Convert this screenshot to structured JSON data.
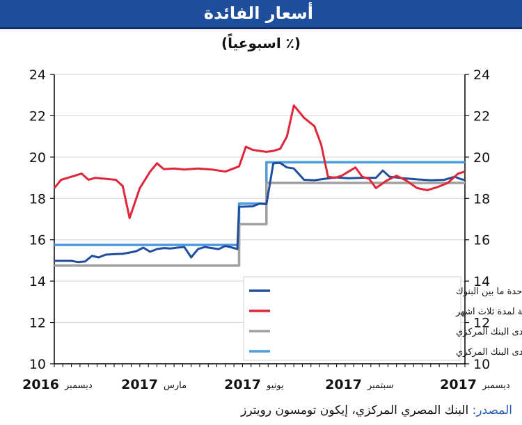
{
  "header": {
    "title": "أسعار الفائدة",
    "subtitle": "(٪ اسبوعياً)"
  },
  "footer": {
    "source_label": "المصدر:",
    "source_text": "البنك المصري المركزي، إيكون تومسون رويترز"
  },
  "chart_data": {
    "type": "line",
    "ylim": [
      10,
      24
    ],
    "yticks": [
      10,
      12,
      14,
      16,
      18,
      20,
      22,
      24
    ],
    "xlim": [
      0,
      12
    ],
    "x_labels": [
      {
        "pos": 0,
        "text": "ديسمبر",
        "style": "small"
      },
      {
        "pos": 0,
        "text": "2016",
        "style": "year"
      },
      {
        "pos": 3,
        "text": "مارس",
        "style": "small"
      },
      {
        "pos": 3,
        "text": "2017",
        "style": "year"
      },
      {
        "pos": 6,
        "text": "يونيو",
        "style": "small"
      },
      {
        "pos": 6,
        "text": "2017",
        "style": "year"
      },
      {
        "pos": 9,
        "text": "سبتمبر",
        "style": "small"
      },
      {
        "pos": 9,
        "text": "2017",
        "style": "year"
      },
      {
        "pos": 12,
        "text": "ديسمبر",
        "style": "small"
      },
      {
        "pos": 12,
        "text": "2017",
        "style": "year"
      }
    ],
    "grid": "horizontal",
    "legend_position": "bottom-right",
    "series": [
      {
        "name": "الاقراض لليلة واحدة لدى البنك المركزي",
        "color": "#4b9be0",
        "width": 3.5,
        "points": [
          [
            0,
            15.75
          ],
          [
            5.4,
            15.75
          ],
          [
            5.4,
            17.75
          ],
          [
            6.2,
            17.75
          ],
          [
            6.2,
            19.75
          ],
          [
            12,
            19.75
          ]
        ]
      },
      {
        "name": "الإيداع لليلة واحدة لدى البنك المركزي",
        "color": "#a0a0a0",
        "width": 3.5,
        "points": [
          [
            0,
            14.75
          ],
          [
            5.4,
            14.75
          ],
          [
            5.4,
            16.75
          ],
          [
            6.2,
            16.75
          ],
          [
            6.2,
            18.75
          ],
          [
            12,
            18.75
          ]
        ]
      },
      {
        "name": "الليلة الواحدة ما بين البنوك",
        "color": "#1f4e9c",
        "width": 3,
        "points": [
          [
            0,
            14.98
          ],
          [
            0.5,
            14.98
          ],
          [
            0.7,
            14.92
          ],
          [
            0.9,
            14.95
          ],
          [
            1.1,
            15.22
          ],
          [
            1.3,
            15.15
          ],
          [
            1.5,
            15.28
          ],
          [
            1.7,
            15.3
          ],
          [
            2.0,
            15.32
          ],
          [
            2.2,
            15.38
          ],
          [
            2.4,
            15.45
          ],
          [
            2.6,
            15.62
          ],
          [
            2.8,
            15.42
          ],
          [
            3.0,
            15.55
          ],
          [
            3.2,
            15.6
          ],
          [
            3.4,
            15.58
          ],
          [
            3.6,
            15.62
          ],
          [
            3.8,
            15.65
          ],
          [
            4.0,
            15.15
          ],
          [
            4.2,
            15.55
          ],
          [
            4.4,
            15.65
          ],
          [
            4.6,
            15.6
          ],
          [
            4.8,
            15.55
          ],
          [
            5.0,
            15.7
          ],
          [
            5.2,
            15.62
          ],
          [
            5.35,
            15.55
          ],
          [
            5.4,
            17.6
          ],
          [
            5.8,
            17.62
          ],
          [
            6.0,
            17.75
          ],
          [
            6.2,
            17.72
          ],
          [
            6.4,
            19.7
          ],
          [
            6.6,
            19.72
          ],
          [
            6.8,
            19.5
          ],
          [
            7.0,
            19.45
          ],
          [
            7.3,
            18.9
          ],
          [
            7.6,
            18.88
          ],
          [
            7.9,
            18.95
          ],
          [
            8.2,
            19.02
          ],
          [
            8.6,
            18.98
          ],
          [
            9.0,
            19.0
          ],
          [
            9.4,
            19.0
          ],
          [
            9.6,
            19.35
          ],
          [
            9.8,
            19.05
          ],
          [
            10.2,
            18.98
          ],
          [
            10.6,
            18.92
          ],
          [
            11.0,
            18.88
          ],
          [
            11.4,
            18.9
          ],
          [
            11.7,
            19.05
          ],
          [
            11.9,
            18.92
          ],
          [
            12,
            18.9
          ]
        ]
      },
      {
        "name": "اذون الخزانة لمدة ثلاث اشهر",
        "color": "#e0263a",
        "width": 3,
        "points": [
          [
            0,
            18.5
          ],
          [
            0.2,
            18.9
          ],
          [
            0.5,
            19.05
          ],
          [
            0.8,
            19.2
          ],
          [
            1.0,
            18.9
          ],
          [
            1.2,
            19.0
          ],
          [
            1.5,
            18.95
          ],
          [
            1.8,
            18.9
          ],
          [
            2.0,
            18.6
          ],
          [
            2.2,
            17.05
          ],
          [
            2.5,
            18.5
          ],
          [
            2.8,
            19.3
          ],
          [
            3.0,
            19.7
          ],
          [
            3.2,
            19.42
          ],
          [
            3.5,
            19.45
          ],
          [
            3.8,
            19.4
          ],
          [
            4.2,
            19.45
          ],
          [
            4.6,
            19.4
          ],
          [
            5.0,
            19.3
          ],
          [
            5.4,
            19.55
          ],
          [
            5.6,
            20.5
          ],
          [
            5.8,
            20.35
          ],
          [
            6.0,
            20.3
          ],
          [
            6.2,
            20.25
          ],
          [
            6.4,
            20.3
          ],
          [
            6.6,
            20.4
          ],
          [
            6.8,
            21.0
          ],
          [
            7.0,
            22.5
          ],
          [
            7.3,
            21.9
          ],
          [
            7.6,
            21.5
          ],
          [
            7.8,
            20.6
          ],
          [
            8.0,
            19.05
          ],
          [
            8.2,
            19.0
          ],
          [
            8.4,
            19.1
          ],
          [
            8.6,
            19.3
          ],
          [
            8.8,
            19.5
          ],
          [
            9.0,
            19.05
          ],
          [
            9.2,
            18.95
          ],
          [
            9.4,
            18.5
          ],
          [
            9.7,
            18.85
          ],
          [
            10.0,
            19.1
          ],
          [
            10.3,
            18.85
          ],
          [
            10.6,
            18.5
          ],
          [
            10.9,
            18.4
          ],
          [
            11.2,
            18.55
          ],
          [
            11.5,
            18.75
          ],
          [
            11.8,
            19.2
          ],
          [
            12,
            19.3
          ]
        ]
      }
    ]
  }
}
